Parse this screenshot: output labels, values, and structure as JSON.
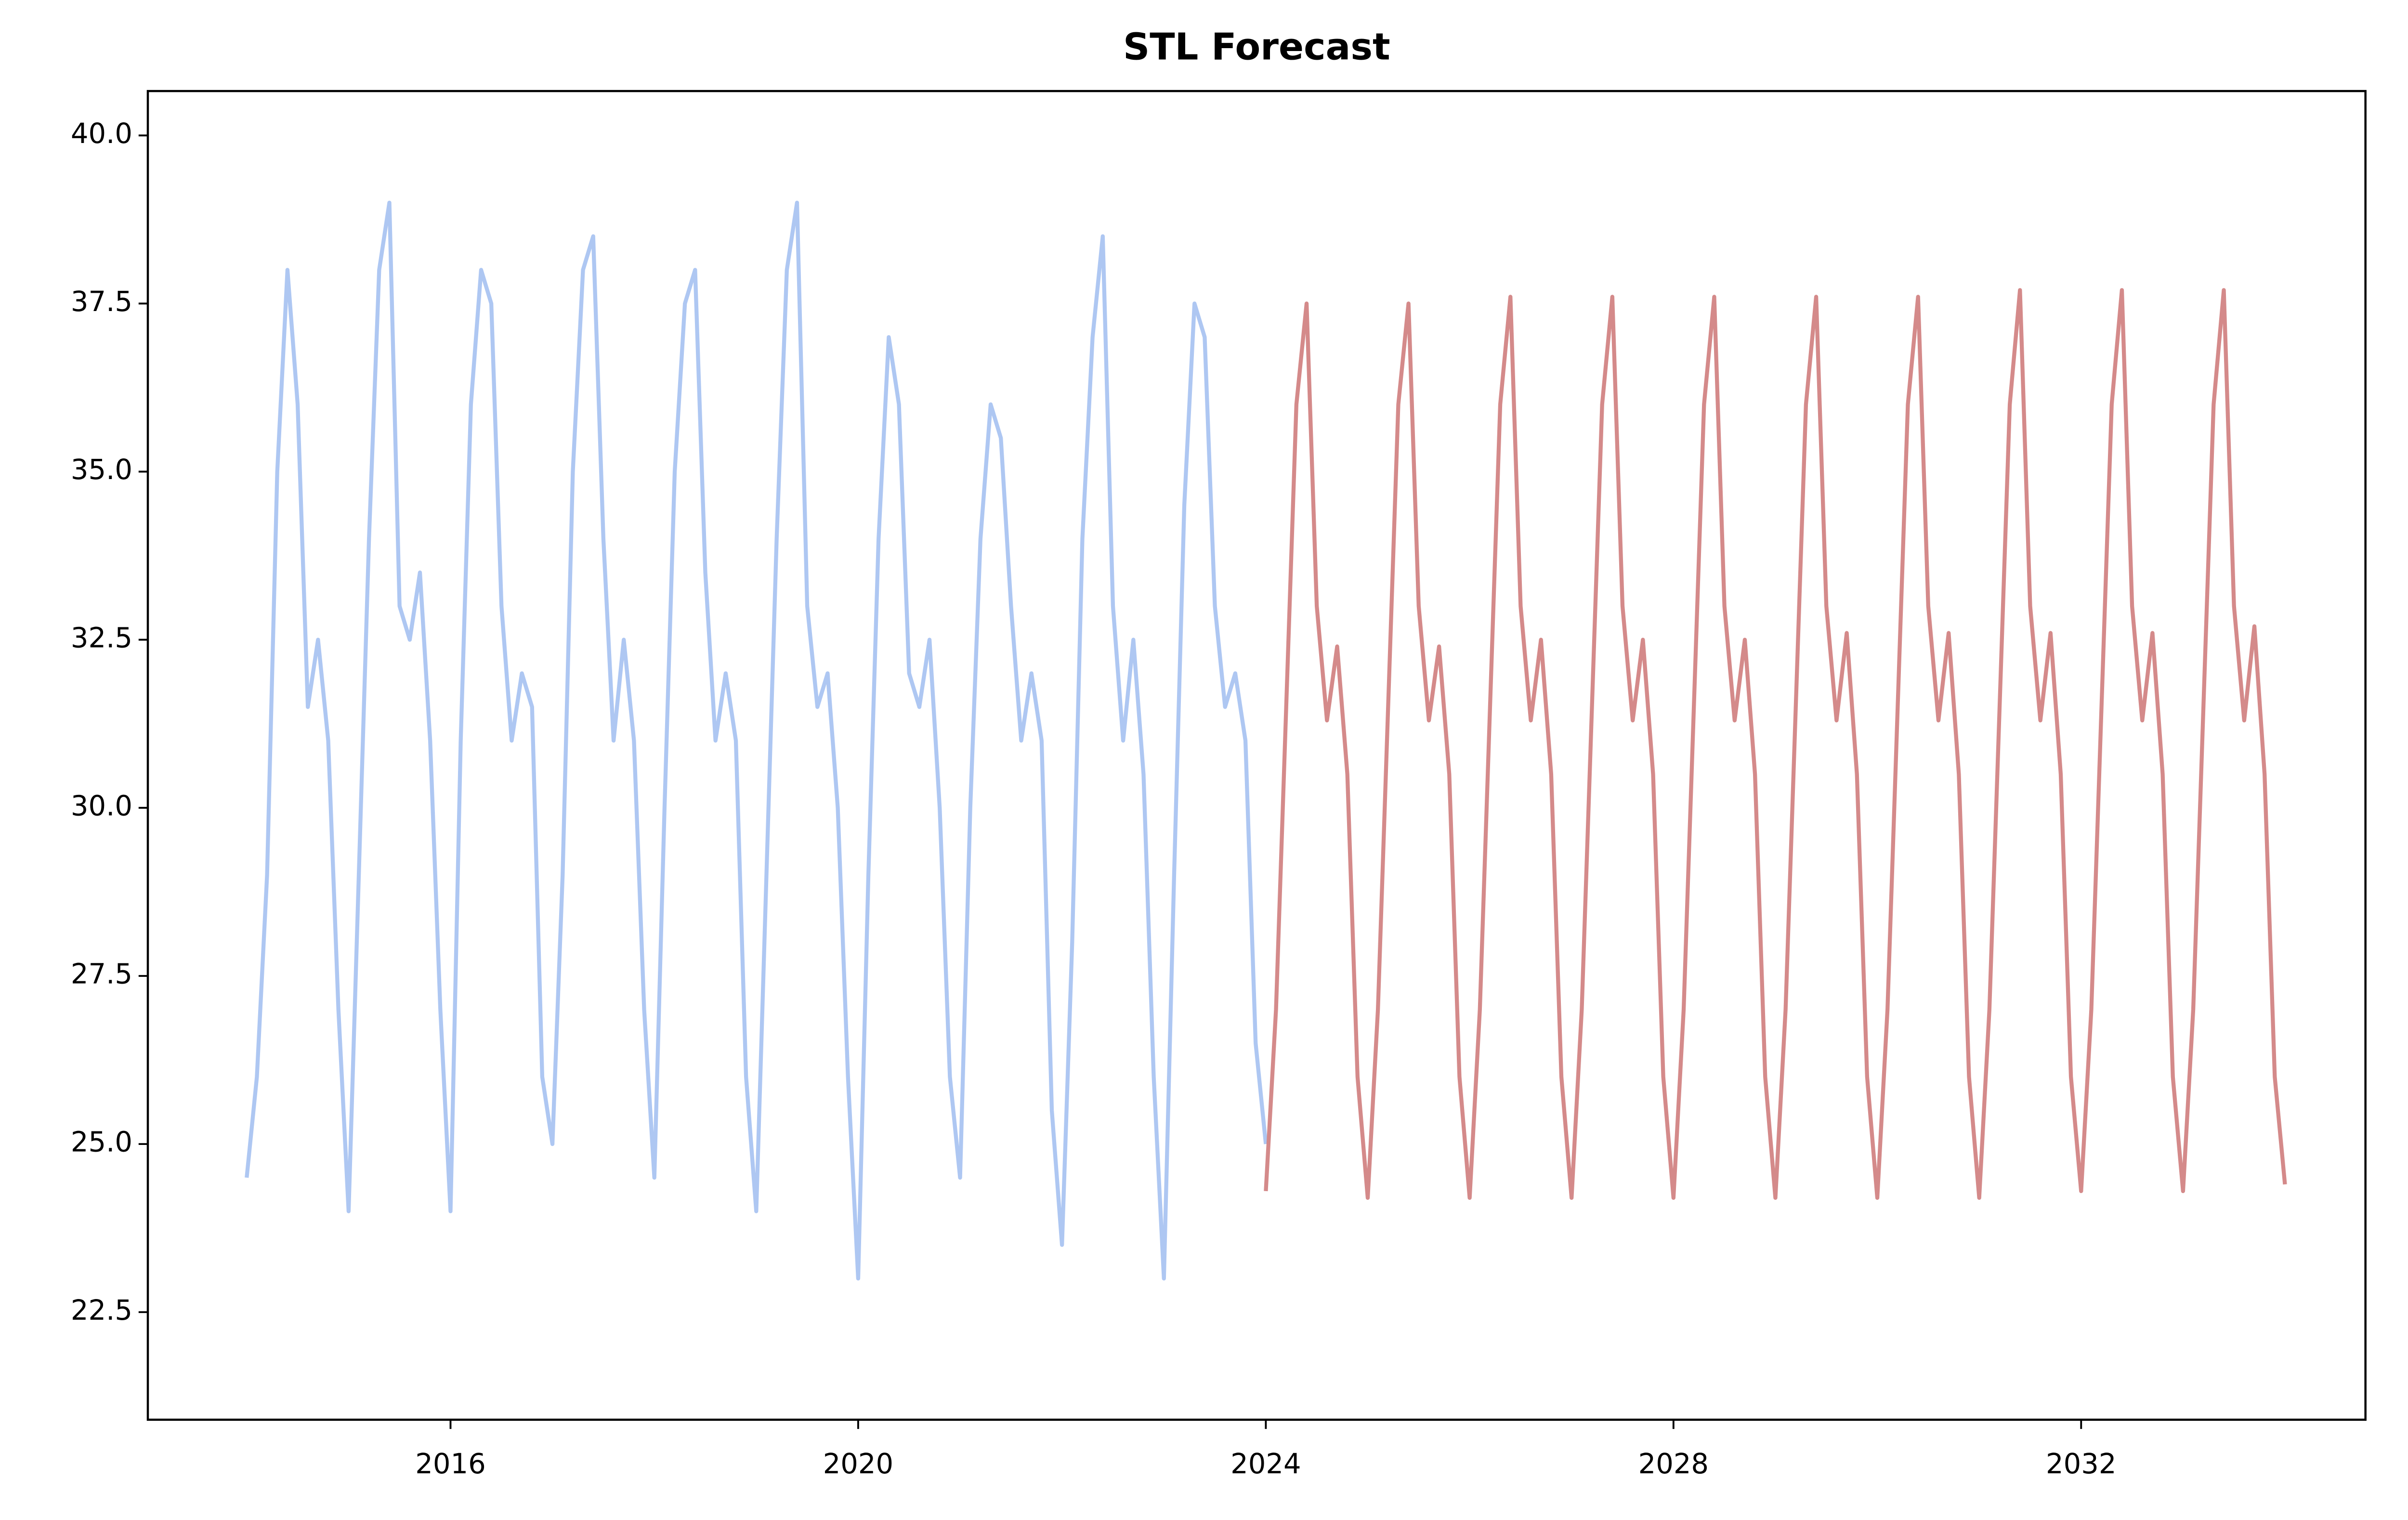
{
  "chart_data": {
    "type": "line",
    "title": "STL Forecast",
    "xlim": [
      2013.03,
      2034.79
    ],
    "xticks": [
      2016,
      2020,
      2024,
      2028,
      2032
    ],
    "ylim": [
      20.9,
      40.66
    ],
    "yticks": [
      22.5,
      {
        "value": 25,
        "label": "25.0"
      },
      27.5,
      {
        "value": 30,
        "label": "30.0"
      },
      32.5,
      {
        "value": 35,
        "label": "35.0"
      },
      37.5,
      {
        "value": 40,
        "label": "40.0"
      }
    ],
    "series": [
      {
        "color": "#aec7f2",
        "x": [
          2014.0,
          2014.1,
          2014.2,
          2014.3,
          2014.4,
          2014.5,
          2014.6,
          2014.7,
          2014.8,
          2014.9,
          2015.0,
          2015.1,
          2015.2,
          2015.3,
          2015.4,
          2015.5,
          2015.6,
          2015.7,
          2015.8,
          2015.9,
          2016.0,
          2016.1,
          2016.2,
          2016.3,
          2016.4,
          2016.5,
          2016.6,
          2016.7,
          2016.8,
          2016.9,
          2017.0,
          2017.1,
          2017.2,
          2017.3,
          2017.4,
          2017.5,
          2017.6,
          2017.7,
          2017.8,
          2017.9,
          2018.0,
          2018.1,
          2018.2,
          2018.3,
          2018.4,
          2018.5,
          2018.6,
          2018.7,
          2018.8,
          2018.9,
          2019.0,
          2019.1,
          2019.2,
          2019.3,
          2019.4,
          2019.5,
          2019.6,
          2019.7,
          2019.8,
          2019.9,
          2020.0,
          2020.1,
          2020.2,
          2020.3,
          2020.4,
          2020.5,
          2020.6,
          2020.7,
          2020.8,
          2020.9,
          2021.0,
          2021.1,
          2021.2,
          2021.3,
          2021.4,
          2021.5,
          2021.6,
          2021.7,
          2021.8,
          2021.9,
          2022.0,
          2022.1,
          2022.2,
          2022.3,
          2022.4,
          2022.5,
          2022.6,
          2022.7,
          2022.8,
          2022.9,
          2023.0,
          2023.1,
          2023.2,
          2023.3,
          2023.4,
          2023.5,
          2023.6,
          2023.7,
          2023.8,
          2023.9,
          2024.0
        ],
        "values": [
          24.5,
          26,
          29,
          35,
          38,
          36,
          31.5,
          32.5,
          31,
          27,
          24,
          29,
          34,
          38,
          39,
          33,
          32.5,
          33.5,
          31,
          27,
          24,
          31,
          36,
          38,
          37.5,
          33,
          31,
          32,
          31.5,
          26,
          25,
          29,
          35,
          38,
          38.5,
          34,
          31,
          32.5,
          31,
          27,
          24.5,
          30,
          35,
          37.5,
          38,
          33.5,
          31,
          32,
          31,
          26,
          24,
          29,
          34,
          38,
          39,
          33,
          31.5,
          32,
          30,
          26,
          23,
          29,
          34,
          37,
          36,
          32,
          31.5,
          32.5,
          30,
          26,
          24.5,
          30,
          34,
          36,
          35.5,
          33,
          31,
          32,
          31,
          25.5,
          23.5,
          28,
          34,
          37,
          38.5,
          33,
          31,
          32.5,
          30.5,
          26,
          23,
          29,
          34.5,
          37.5,
          37,
          33,
          31.5,
          32,
          31,
          26.5,
          25
        ]
      },
      {
        "color": "#d48a8a",
        "x": [
          2024.0,
          2024.1,
          2024.2,
          2024.3,
          2024.4,
          2024.5,
          2024.6,
          2024.7,
          2024.8,
          2024.9,
          2025.0,
          2025.1,
          2025.2,
          2025.3,
          2025.4,
          2025.5,
          2025.6,
          2025.7,
          2025.8,
          2025.9,
          2026.0,
          2026.1,
          2026.2,
          2026.3,
          2026.4,
          2026.5,
          2026.6,
          2026.7,
          2026.8,
          2026.9,
          2027.0,
          2027.1,
          2027.2,
          2027.3,
          2027.4,
          2027.5,
          2027.6,
          2027.7,
          2027.8,
          2027.9,
          2028.0,
          2028.1,
          2028.2,
          2028.3,
          2028.4,
          2028.5,
          2028.6,
          2028.7,
          2028.8,
          2028.9,
          2029.0,
          2029.1,
          2029.2,
          2029.3,
          2029.4,
          2029.5,
          2029.6,
          2029.7,
          2029.8,
          2029.9,
          2030.0,
          2030.1,
          2030.2,
          2030.3,
          2030.4,
          2030.5,
          2030.6,
          2030.7,
          2030.8,
          2030.9,
          2031.0,
          2031.1,
          2031.2,
          2031.3,
          2031.4,
          2031.5,
          2031.6,
          2031.7,
          2031.8,
          2031.9,
          2032.0,
          2032.1,
          2032.2,
          2032.3,
          2032.4,
          2032.5,
          2032.6,
          2032.7,
          2032.8,
          2032.9,
          2033.0,
          2033.1,
          2033.2,
          2033.3,
          2033.4,
          2033.5,
          2033.6,
          2033.7,
          2033.8,
          2033.9,
          2034.0
        ],
        "values": [
          24.3,
          27,
          31.5,
          36,
          37.5,
          33,
          31.3,
          32.4,
          30.5,
          26,
          24.2,
          27,
          31.5,
          36,
          37.5,
          33,
          31.3,
          32.4,
          30.5,
          26,
          24.2,
          27,
          31.5,
          36,
          37.6,
          33,
          31.3,
          32.5,
          30.5,
          26,
          24.2,
          27,
          31.5,
          36,
          37.6,
          33,
          31.3,
          32.5,
          30.5,
          26,
          24.2,
          27,
          31.5,
          36,
          37.6,
          33,
          31.3,
          32.5,
          30.5,
          26,
          24.2,
          27,
          31.5,
          36,
          37.6,
          33,
          31.3,
          32.6,
          30.5,
          26,
          24.2,
          27,
          31.5,
          36,
          37.6,
          33,
          31.3,
          32.6,
          30.5,
          26,
          24.2,
          27,
          31.5,
          36,
          37.7,
          33,
          31.3,
          32.6,
          30.5,
          26,
          24.3,
          27,
          31.5,
          36,
          37.7,
          33,
          31.3,
          32.6,
          30.5,
          26,
          24.3,
          27,
          31.5,
          36,
          37.7,
          33,
          31.3,
          32.7,
          30.5,
          26,
          24.4
        ]
      }
    ]
  }
}
